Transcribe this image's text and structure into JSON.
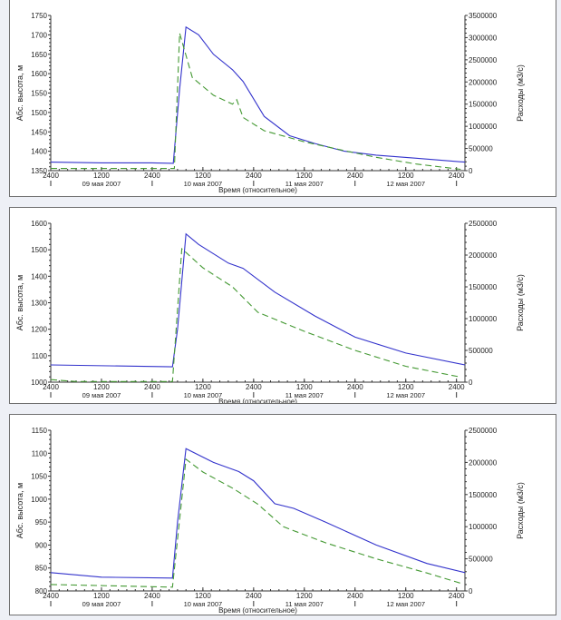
{
  "chart_data": [
    {
      "type": "line",
      "xlabel": "Время (относительное)",
      "ylabel": "Абс. высота, м",
      "y2label": "Расходы (м3/с)",
      "xlim": [
        "2007-05-09T00:00",
        "2007-05-13T02:00"
      ],
      "ylim": [
        1350,
        1750
      ],
      "y2lim": [
        0,
        3500000
      ],
      "yticks": [
        1350,
        1400,
        1450,
        1500,
        1550,
        1600,
        1650,
        1700,
        1750
      ],
      "y2ticks": [
        0,
        500000,
        1000000,
        1500000,
        2000000,
        2500000,
        3000000,
        3500000
      ],
      "series": [
        {
          "axis": "left",
          "color": "#3333cc",
          "style": "solid",
          "points": [
            [
              "2007-05-09T00:00",
              1372
            ],
            [
              "2007-05-09T12:00",
              1370
            ],
            [
              "2007-05-10T00:00",
              1370
            ],
            [
              "2007-05-10T05:00",
              1369
            ],
            [
              "2007-05-10T06:30",
              1560
            ],
            [
              "2007-05-10T08:00",
              1720
            ],
            [
              "2007-05-10T11:00",
              1700
            ],
            [
              "2007-05-10T14:30",
              1650
            ],
            [
              "2007-05-10T19:00",
              1610
            ],
            [
              "2007-05-10T21:30",
              1580
            ],
            [
              "2007-05-11T02:30",
              1490
            ],
            [
              "2007-05-11T08:30",
              1440
            ],
            [
              "2007-05-11T14:30",
              1420
            ],
            [
              "2007-05-11T21:30",
              1400
            ],
            [
              "2007-05-12T05:00",
              1390
            ],
            [
              "2007-05-12T14:30",
              1382
            ],
            [
              "2007-05-13T02:00",
              1372
            ]
          ]
        },
        {
          "axis": "right",
          "color": "#449933",
          "style": "dashed",
          "points": [
            [
              "2007-05-09T00:00",
              50000
            ],
            [
              "2007-05-10T05:15",
              50000
            ],
            [
              "2007-05-10T06:30",
              3100000
            ],
            [
              "2007-05-10T09:30",
              2100000
            ],
            [
              "2007-05-10T14:30",
              1700000
            ],
            [
              "2007-05-10T19:00",
              1500000
            ],
            [
              "2007-05-10T20:00",
              1600000
            ],
            [
              "2007-05-10T21:30",
              1200000
            ],
            [
              "2007-05-11T02:30",
              900000
            ],
            [
              "2007-05-11T12:00",
              650000
            ],
            [
              "2007-05-11T21:30",
              450000
            ],
            [
              "2007-05-12T05:00",
              300000
            ],
            [
              "2007-05-12T14:30",
              150000
            ],
            [
              "2007-05-13T01:00",
              30000
            ]
          ]
        }
      ]
    },
    {
      "type": "line",
      "xlabel": "Время (относительное)",
      "ylabel": "Абс. высота, м",
      "y2label": "Расходы (м3/с)",
      "xlim": [
        "2007-05-09T00:00",
        "2007-05-13T02:00"
      ],
      "ylim": [
        1000,
        1600
      ],
      "y2lim": [
        0,
        2500000
      ],
      "yticks": [
        1000,
        1100,
        1200,
        1300,
        1400,
        1500,
        1600
      ],
      "y2ticks": [
        0,
        500000,
        1000000,
        1500000,
        2000000,
        2500000
      ],
      "series": [
        {
          "axis": "left",
          "color": "#3333cc",
          "style": "solid",
          "points": [
            [
              "2007-05-09T00:00",
              1065
            ],
            [
              "2007-05-10T04:48",
              1058
            ],
            [
              "2007-05-10T06:00",
              1200
            ],
            [
              "2007-05-10T08:00",
              1560
            ],
            [
              "2007-05-10T11:00",
              1520
            ],
            [
              "2007-05-10T18:00",
              1450
            ],
            [
              "2007-05-10T21:30",
              1430
            ],
            [
              "2007-05-11T05:00",
              1340
            ],
            [
              "2007-05-11T14:30",
              1250
            ],
            [
              "2007-05-12T00:00",
              1170
            ],
            [
              "2007-05-12T12:00",
              1110
            ],
            [
              "2007-05-13T02:00",
              1065
            ]
          ]
        },
        {
          "axis": "right",
          "color": "#449933",
          "style": "dashed",
          "points": [
            [
              "2007-05-09T00:00",
              40000
            ],
            [
              "2007-05-09T06:00",
              10000
            ],
            [
              "2007-05-10T04:48",
              10000
            ],
            [
              "2007-05-10T07:00",
              2100000
            ],
            [
              "2007-05-10T12:00",
              1800000
            ],
            [
              "2007-05-10T19:00",
              1500000
            ],
            [
              "2007-05-11T01:00",
              1100000
            ],
            [
              "2007-05-11T12:00",
              800000
            ],
            [
              "2007-05-12T00:00",
              500000
            ],
            [
              "2007-05-12T12:00",
              250000
            ],
            [
              "2007-05-13T01:00",
              80000
            ]
          ]
        }
      ]
    },
    {
      "type": "line",
      "xlabel": "Время (относительное)",
      "ylabel": "Абс. высота, м",
      "y2label": "Расходы (м3/с)",
      "xlim": [
        "2007-05-09T00:00",
        "2007-05-13T02:00"
      ],
      "ylim": [
        800,
        1150
      ],
      "y2lim": [
        0,
        2500000
      ],
      "yticks": [
        800,
        850,
        900,
        950,
        1000,
        1050,
        1100,
        1150
      ],
      "y2ticks": [
        0,
        500000,
        1000000,
        1500000,
        2000000,
        2500000
      ],
      "series": [
        {
          "axis": "left",
          "color": "#3333cc",
          "style": "solid",
          "points": [
            [
              "2007-05-09T00:00",
              840
            ],
            [
              "2007-05-09T12:00",
              830
            ],
            [
              "2007-05-10T04:48",
              828
            ],
            [
              "2007-05-10T06:00",
              950
            ],
            [
              "2007-05-10T08:00",
              1110
            ],
            [
              "2007-05-10T14:30",
              1080
            ],
            [
              "2007-05-10T20:30",
              1060
            ],
            [
              "2007-05-11T00:00",
              1040
            ],
            [
              "2007-05-11T05:00",
              990
            ],
            [
              "2007-05-11T09:30",
              980
            ],
            [
              "2007-05-11T17:00",
              950
            ],
            [
              "2007-05-12T05:00",
              900
            ],
            [
              "2007-05-12T17:00",
              860
            ],
            [
              "2007-05-13T02:00",
              840
            ]
          ]
        },
        {
          "axis": "right",
          "color": "#449933",
          "style": "dashed",
          "points": [
            [
              "2007-05-09T00:00",
              100000
            ],
            [
              "2007-05-10T04:48",
              60000
            ],
            [
              "2007-05-10T08:00",
              2050000
            ],
            [
              "2007-05-10T12:00",
              1850000
            ],
            [
              "2007-05-10T19:00",
              1600000
            ],
            [
              "2007-05-11T01:00",
              1350000
            ],
            [
              "2007-05-11T07:00",
              1000000
            ],
            [
              "2007-05-11T17:00",
              750000
            ],
            [
              "2007-05-12T05:00",
              500000
            ],
            [
              "2007-05-12T17:00",
              280000
            ],
            [
              "2007-05-13T01:00",
              120000
            ]
          ]
        }
      ]
    }
  ],
  "x_axis": {
    "tick_labels": [
      "2400",
      "1200",
      "2400",
      "1200",
      "2400",
      "1200",
      "2400",
      "1200",
      "2400"
    ],
    "date_labels": [
      "09 мая 2007",
      "10 мая 2007",
      "11 мая 2007",
      "12 мая 2007"
    ]
  }
}
